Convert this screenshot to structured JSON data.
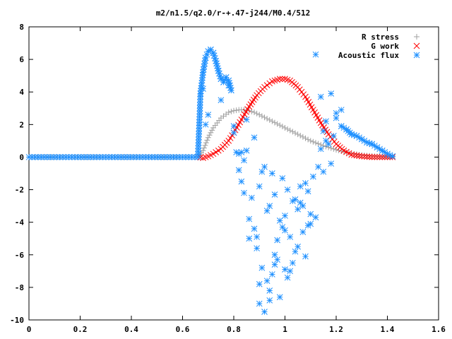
{
  "chart_data": {
    "type": "scatter",
    "title": "m2/n1.5/q2.0/r-+.47-j244/M0.4/512",
    "xlabel": "",
    "ylabel": "",
    "xlim": [
      0,
      1.6
    ],
    "ylim": [
      -10,
      8
    ],
    "x_ticks": [
      "0",
      "0.2",
      "0.4",
      "0.6",
      "0.8",
      "1",
      "1.2",
      "1.4",
      "1.6"
    ],
    "y_ticks": [
      "8",
      "6",
      "4",
      "2",
      "0",
      "-2",
      "-4",
      "-6",
      "-8",
      "-10"
    ],
    "grid": false,
    "legend_position": "top-right",
    "series": [
      {
        "name": "R stress",
        "marker": "plus",
        "color": "#a0a0a0",
        "x": [
          0.0,
          0.1,
          0.2,
          0.3,
          0.4,
          0.5,
          0.6,
          0.66,
          0.68,
          0.7,
          0.72,
          0.75,
          0.78,
          0.8,
          0.82,
          0.84,
          0.86,
          0.88,
          0.9,
          0.95,
          1.0,
          1.05,
          1.1,
          1.15,
          1.2,
          1.25,
          1.3,
          1.35,
          1.4,
          1.42
        ],
        "y": [
          0,
          0,
          0,
          0,
          0,
          0,
          0,
          0,
          0.4,
          1.2,
          1.8,
          2.4,
          2.75,
          2.85,
          2.9,
          2.9,
          2.85,
          2.75,
          2.6,
          2.2,
          1.8,
          1.4,
          1.0,
          0.7,
          0.45,
          0.25,
          0.12,
          0.05,
          0.01,
          0
        ]
      },
      {
        "name": "G work",
        "marker": "cross",
        "color": "#ff0000",
        "x": [
          0.66,
          0.68,
          0.7,
          0.72,
          0.75,
          0.78,
          0.8,
          0.83,
          0.86,
          0.89,
          0.92,
          0.95,
          0.98,
          1.0,
          1.02,
          1.05,
          1.08,
          1.11,
          1.14,
          1.17,
          1.2,
          1.23,
          1.26,
          1.3,
          1.34,
          1.38,
          1.42
        ],
        "y": [
          0,
          -0.05,
          0.05,
          0.2,
          0.5,
          1.0,
          1.5,
          2.3,
          3.1,
          3.8,
          4.3,
          4.65,
          4.8,
          4.8,
          4.7,
          4.3,
          3.7,
          2.9,
          2.1,
          1.4,
          0.8,
          0.4,
          0.15,
          0.05,
          0.0,
          0.0,
          0.0
        ]
      },
      {
        "name": "Acoustic flux",
        "marker": "star",
        "color": "#1e90ff",
        "x": [
          0.0,
          0.1,
          0.2,
          0.3,
          0.4,
          0.5,
          0.6,
          0.66,
          0.67,
          0.68,
          0.69,
          0.7,
          0.71,
          0.72,
          0.73,
          0.74,
          0.75,
          0.76,
          0.77,
          0.78,
          0.79,
          0.8,
          0.81,
          0.82,
          0.83,
          0.84,
          0.85,
          0.86,
          0.87,
          0.88,
          0.89,
          0.9,
          0.91,
          0.92,
          0.93,
          0.94,
          0.95,
          0.96,
          0.97,
          0.98,
          0.99,
          1.0,
          1.01,
          1.02,
          1.03,
          1.04,
          1.05,
          1.06,
          1.07,
          1.08,
          1.09,
          1.1,
          1.11,
          1.12,
          1.13,
          1.14,
          1.15,
          1.16,
          1.17,
          1.18,
          1.19,
          1.2,
          1.22,
          1.24,
          1.26,
          1.28,
          1.3,
          1.32,
          1.34,
          1.36,
          1.38,
          1.4,
          1.42,
          0.68,
          0.69,
          0.7,
          0.75,
          0.78,
          0.8,
          0.82,
          0.85,
          0.88,
          0.9,
          0.92,
          0.94,
          0.96,
          0.98,
          1.0,
          1.03,
          1.06,
          1.08,
          1.12,
          1.15,
          1.18,
          0.86,
          0.9,
          0.94,
          0.97,
          1.0,
          1.05,
          1.1,
          0.89,
          0.93,
          0.96,
          1.02,
          1.07,
          0.84,
          0.91,
          0.99,
          1.04,
          1.14,
          1.2,
          1.16,
          1.22,
          0.83,
          0.95,
          1.01,
          1.09
        ],
        "y": [
          0,
          0,
          0,
          0,
          0,
          0,
          0,
          0,
          3.9,
          5.2,
          6.1,
          6.5,
          6.6,
          6.4,
          5.9,
          5.3,
          4.8,
          4.6,
          4.9,
          4.7,
          4.1,
          1.5,
          0.3,
          -0.8,
          -1.5,
          -2.2,
          0.4,
          -3.8,
          -2.5,
          -4.4,
          -5.6,
          -9.0,
          -6.8,
          -9.5,
          -7.6,
          -8.2,
          -7.2,
          -6.0,
          -5.1,
          -8.6,
          -4.3,
          -3.6,
          -7.4,
          -4.9,
          -2.7,
          -5.8,
          -3.2,
          -1.8,
          -4.6,
          -6.1,
          -2.1,
          -3.5,
          -1.2,
          6.3,
          -0.6,
          3.7,
          1.6,
          2.2,
          0.8,
          3.9,
          1.3,
          2.7,
          1.9,
          1.7,
          1.4,
          1.3,
          1.1,
          0.9,
          0.8,
          0.6,
          0.4,
          0.2,
          0.05,
          4.2,
          2.0,
          2.6,
          3.5,
          4.4,
          1.9,
          0.2,
          2.3,
          1.2,
          -1.8,
          -0.6,
          -3.0,
          -2.3,
          -3.9,
          -4.5,
          -6.5,
          -2.8,
          -1.6,
          -3.7,
          -0.9,
          -0.4,
          -5.0,
          -7.8,
          -8.8,
          -6.3,
          -6.9,
          -5.5,
          -4.1,
          -4.9,
          -3.3,
          -6.6,
          -7.0,
          -3.0,
          -0.2,
          -0.9,
          -1.3,
          -2.6,
          0.5,
          2.4,
          1.0,
          2.9,
          0.3,
          -1.0,
          -2.0,
          -4.2
        ]
      }
    ]
  }
}
